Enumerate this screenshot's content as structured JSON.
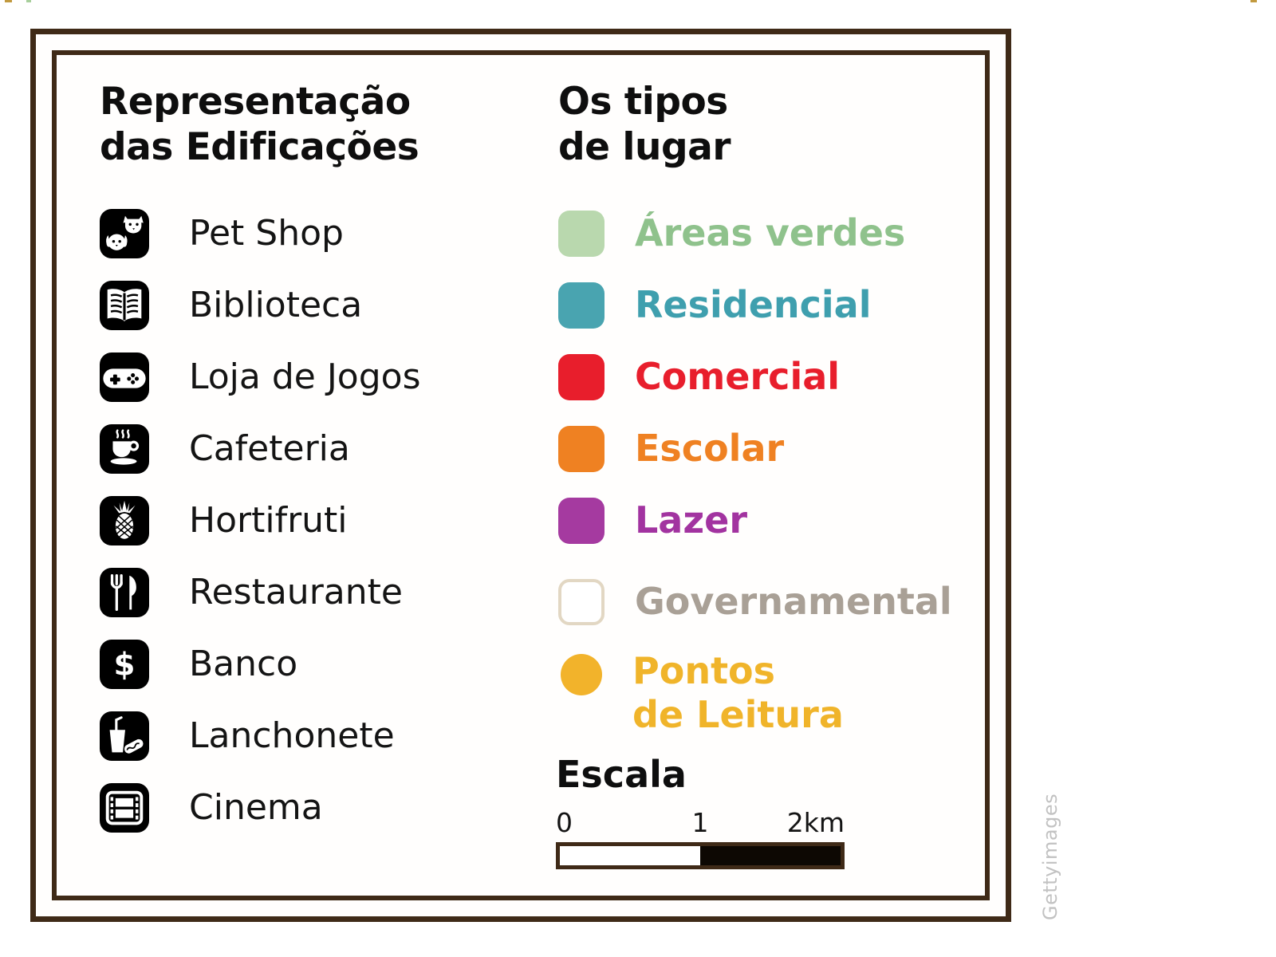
{
  "frame": {
    "border_color": "#3f2a17"
  },
  "buildings": {
    "title": "Representação\ndas Edificações",
    "items": [
      {
        "label": "Pet Shop",
        "icon": "pet-shop-icon"
      },
      {
        "label": "Biblioteca",
        "icon": "open-book-icon"
      },
      {
        "label": "Loja de Jogos",
        "icon": "gamepad-icon"
      },
      {
        "label": "Cafeteria",
        "icon": "coffee-cup-icon"
      },
      {
        "label": "Hortifruti",
        "icon": "pineapple-icon"
      },
      {
        "label": "Restaurante",
        "icon": "fork-knife-icon"
      },
      {
        "label": "Banco",
        "icon": "dollar-sign-icon"
      },
      {
        "label": "Lanchonete",
        "icon": "drink-hotdog-icon"
      },
      {
        "label": "Cinema",
        "icon": "film-strip-icon"
      }
    ]
  },
  "place_types": {
    "title": "Os tipos\nde lugar",
    "items": [
      {
        "label": "Áreas verdes",
        "shape": "square",
        "swatch_color": "#b9d8ae",
        "text_color": "#8fc28c"
      },
      {
        "label": "Residencial",
        "shape": "square",
        "swatch_color": "#49a4b0",
        "text_color": "#3f9fae"
      },
      {
        "label": "Comercial",
        "shape": "square",
        "swatch_color": "#e81e2c",
        "text_color": "#e81e2c"
      },
      {
        "label": "Escolar",
        "shape": "square",
        "swatch_color": "#ef8122",
        "text_color": "#ef8122"
      },
      {
        "label": "Lazer",
        "shape": "square",
        "swatch_color": "#a53aa0",
        "text_color": "#a233a0"
      },
      {
        "label": "Governamental",
        "shape": "square-outline",
        "swatch_color": "#ffffff",
        "swatch_border": "#e2d7c3",
        "text_color": "#a9a096"
      },
      {
        "label": "Pontos\nde Leitura",
        "shape": "circle",
        "swatch_color": "#f2b32b",
        "text_color": "#f0b42a"
      }
    ]
  },
  "scale": {
    "title": "Escala",
    "ticks": [
      "0",
      "1",
      "2km"
    ],
    "bar_left_color": "#ffffff",
    "bar_right_color": "#0d0803",
    "bar_border_color": "#3f2a17"
  },
  "watermark": "Gettyimages"
}
